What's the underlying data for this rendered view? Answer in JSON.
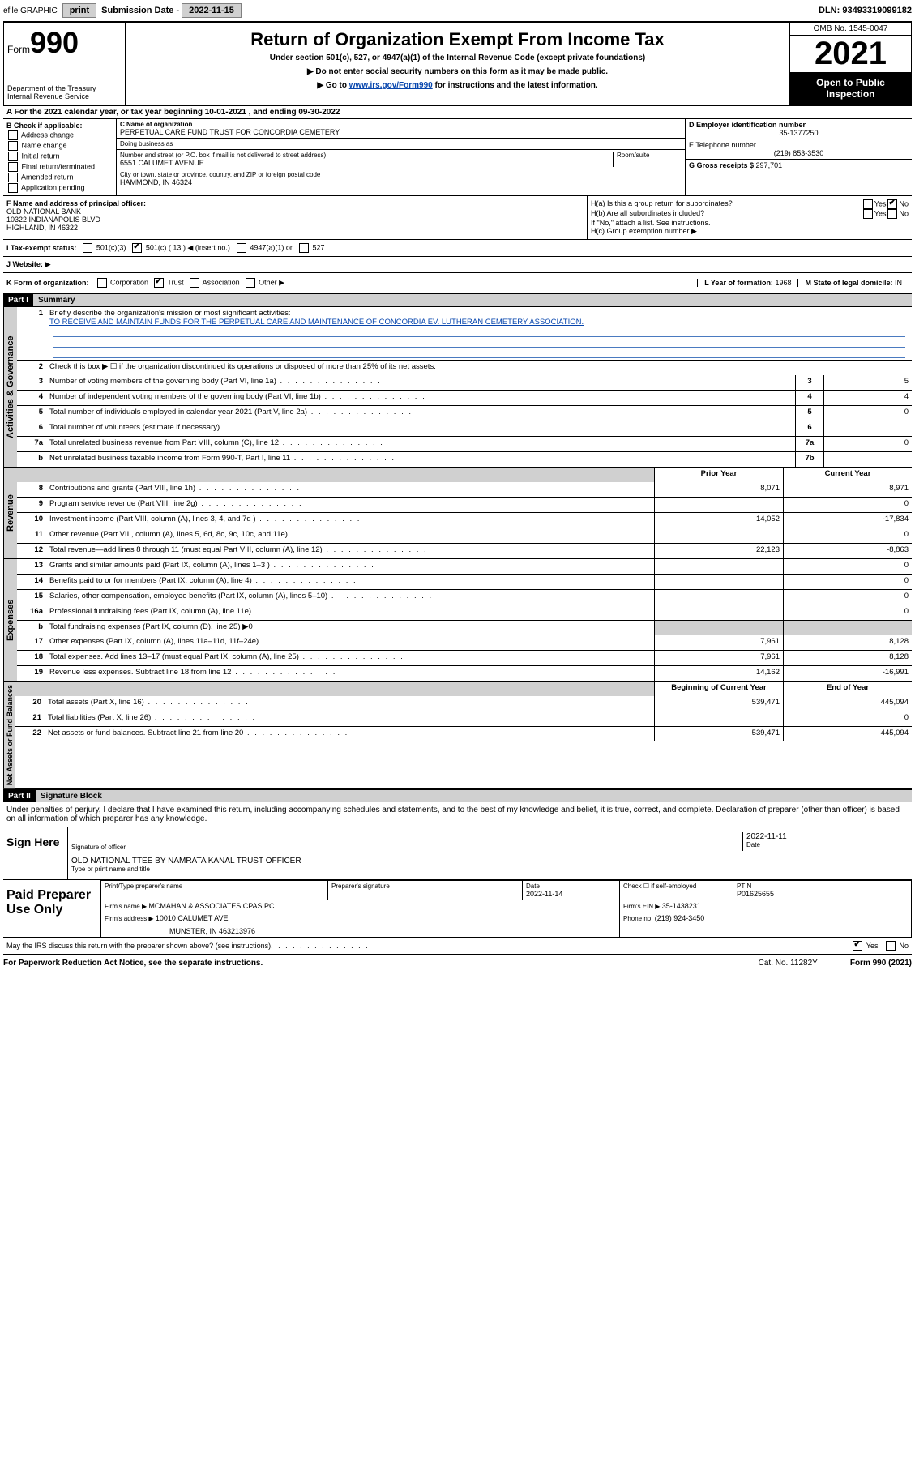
{
  "top_bar": {
    "efile_label": "efile GRAPHIC",
    "print_btn": "print",
    "sub_date_label": "Submission Date - ",
    "sub_date": "2022-11-15",
    "dln_label": "DLN: ",
    "dln": "93493319099182"
  },
  "header": {
    "form_word": "Form",
    "form_num": "990",
    "dept": "Department of the Treasury\nInternal Revenue Service",
    "title": "Return of Organization Exempt From Income Tax",
    "sub1": "Under section 501(c), 527, or 4947(a)(1) of the Internal Revenue Code (except private foundations)",
    "sub2": "▶ Do not enter social security numbers on this form as it may be made public.",
    "sub3_pre": "▶ Go to ",
    "sub3_link": "www.irs.gov/Form990",
    "sub3_post": " for instructions and the latest information.",
    "omb": "OMB No. 1545-0047",
    "year": "2021",
    "inspect": "Open to Public Inspection"
  },
  "line_a": {
    "prefix": "A For the 2021 calendar year, or tax year beginning ",
    "begin": "10-01-2021",
    "mid": " , and ending ",
    "end": "09-30-2022"
  },
  "box_b": {
    "label": "B Check if applicable:",
    "opts": [
      "Address change",
      "Name change",
      "Initial return",
      "Final return/terminated",
      "Amended return",
      "Application pending"
    ]
  },
  "box_c": {
    "name_label": "C Name of organization",
    "name": "PERPETUAL CARE FUND TRUST FOR CONCORDIA CEMETERY",
    "dba_label": "Doing business as",
    "addr_label": "Number and street (or P.O. box if mail is not delivered to street address)",
    "room_label": "Room/suite",
    "addr": "6551 CALUMET AVENUE",
    "city_label": "City or town, state or province, country, and ZIP or foreign postal code",
    "city": "HAMMOND, IN  46324"
  },
  "box_d": {
    "label": "D Employer identification number",
    "val": "35-1377250"
  },
  "box_e": {
    "label": "E Telephone number",
    "val": "(219) 853-3530"
  },
  "box_g": {
    "label": "G Gross receipts $ ",
    "val": "297,701"
  },
  "box_f": {
    "label": "F Name and address of principal officer:",
    "line1": "OLD NATIONAL BANK",
    "line2": "10322 INDIANAPOLIS BLVD",
    "line3": "HIGHLAND, IN  46322"
  },
  "box_h": {
    "ha": "H(a)  Is this a group return for subordinates?",
    "ha_no_checked": true,
    "hb": "H(b)  Are all subordinates included?",
    "hb_note": "If \"No,\" attach a list. See instructions.",
    "hc": "H(c)  Group exemption number ▶"
  },
  "row_i": {
    "label": "I  Tax-exempt status:",
    "opt1": "501(c)(3)",
    "opt2_pre": "501(c) ( ",
    "opt2_num": "13",
    "opt2_post": " ) ◀ (insert no.)",
    "opt2_checked": true,
    "opt3": "4947(a)(1) or",
    "opt4": "527"
  },
  "row_j": {
    "label": "J  Website: ▶"
  },
  "row_k": {
    "label": "K Form of organization:",
    "opts": [
      "Corporation",
      "Trust",
      "Association",
      "Other ▶"
    ],
    "checked_idx": 1,
    "year_label": "L Year of formation: ",
    "year_val": "1968",
    "state_label": "M State of legal domicile: ",
    "state_val": "IN"
  },
  "part1": {
    "header": "Part I",
    "title": "Summary",
    "vtab_gov": "Activities & Governance",
    "vtab_rev": "Revenue",
    "vtab_exp": "Expenses",
    "vtab_net": "Net Assets or Fund Balances",
    "line1_label": "Briefly describe the organization's mission or most significant activities:",
    "line1_text": "TO RECEIVE AND MAINTAIN FUNDS FOR THE PERPETUAL CARE AND MAINTENANCE OF CONCORDIA EV. LUTHERAN CEMETERY ASSOCIATION.",
    "line2": "Check this box ▶ ☐  if the organization discontinued its operations or disposed of more than 25% of its net assets.",
    "rows_gov": [
      {
        "n": "3",
        "d": "Number of voting members of the governing body (Part VI, line 1a)",
        "box": "3",
        "v": "5"
      },
      {
        "n": "4",
        "d": "Number of independent voting members of the governing body (Part VI, line 1b)",
        "box": "4",
        "v": "4"
      },
      {
        "n": "5",
        "d": "Total number of individuals employed in calendar year 2021 (Part V, line 2a)",
        "box": "5",
        "v": "0"
      },
      {
        "n": "6",
        "d": "Total number of volunteers (estimate if necessary)",
        "box": "6",
        "v": ""
      },
      {
        "n": "7a",
        "d": "Total unrelated business revenue from Part VIII, column (C), line 12",
        "box": "7a",
        "v": "0"
      },
      {
        "n": "b",
        "d": "Net unrelated business taxable income from Form 990-T, Part I, line 11",
        "box": "7b",
        "v": ""
      }
    ],
    "col_prior": "Prior Year",
    "col_curr": "Current Year",
    "rows_rev": [
      {
        "n": "8",
        "d": "Contributions and grants (Part VIII, line 1h)",
        "p": "8,071",
        "c": "8,971"
      },
      {
        "n": "9",
        "d": "Program service revenue (Part VIII, line 2g)",
        "p": "",
        "c": "0"
      },
      {
        "n": "10",
        "d": "Investment income (Part VIII, column (A), lines 3, 4, and 7d )",
        "p": "14,052",
        "c": "-17,834"
      },
      {
        "n": "11",
        "d": "Other revenue (Part VIII, column (A), lines 5, 6d, 8c, 9c, 10c, and 11e)",
        "p": "",
        "c": "0"
      },
      {
        "n": "12",
        "d": "Total revenue—add lines 8 through 11 (must equal Part VIII, column (A), line 12)",
        "p": "22,123",
        "c": "-8,863"
      }
    ],
    "rows_exp": [
      {
        "n": "13",
        "d": "Grants and similar amounts paid (Part IX, column (A), lines 1–3 )",
        "p": "",
        "c": "0"
      },
      {
        "n": "14",
        "d": "Benefits paid to or for members (Part IX, column (A), line 4)",
        "p": "",
        "c": "0"
      },
      {
        "n": "15",
        "d": "Salaries, other compensation, employee benefits (Part IX, column (A), lines 5–10)",
        "p": "",
        "c": "0"
      },
      {
        "n": "16a",
        "d": "Professional fundraising fees (Part IX, column (A), line 11e)",
        "p": "",
        "c": "0"
      }
    ],
    "row_16b_pre": "Total fundraising expenses (Part IX, column (D), line 25) ▶",
    "row_16b_val": "0",
    "rows_exp2": [
      {
        "n": "17",
        "d": "Other expenses (Part IX, column (A), lines 11a–11d, 11f–24e)",
        "p": "7,961",
        "c": "8,128"
      },
      {
        "n": "18",
        "d": "Total expenses. Add lines 13–17 (must equal Part IX, column (A), line 25)",
        "p": "7,961",
        "c": "8,128"
      },
      {
        "n": "19",
        "d": "Revenue less expenses. Subtract line 18 from line 12",
        "p": "14,162",
        "c": "-16,991"
      }
    ],
    "col_begin": "Beginning of Current Year",
    "col_end": "End of Year",
    "rows_net": [
      {
        "n": "20",
        "d": "Total assets (Part X, line 16)",
        "p": "539,471",
        "c": "445,094"
      },
      {
        "n": "21",
        "d": "Total liabilities (Part X, line 26)",
        "p": "",
        "c": "0"
      },
      {
        "n": "22",
        "d": "Net assets or fund balances. Subtract line 21 from line 20",
        "p": "539,471",
        "c": "445,094"
      }
    ]
  },
  "part2": {
    "header": "Part II",
    "title": "Signature Block",
    "intro": "Under penalties of perjury, I declare that I have examined this return, including accompanying schedules and statements, and to the best of my knowledge and belief, it is true, correct, and complete. Declaration of preparer (other than officer) is based on all information of which preparer has any knowledge.",
    "sign_here": "Sign Here",
    "sig_officer": "Signature of officer",
    "sig_date_label": "Date",
    "sig_date": "2022-11-11",
    "name_title": "OLD NATIONAL TTEE BY NAMRATA KANAL  TRUST OFFICER",
    "name_title_label": "Type or print name and title",
    "paid_label": "Paid Preparer Use Only",
    "prep_name_label": "Print/Type preparer's name",
    "prep_sig_label": "Preparer's signature",
    "prep_date_label": "Date",
    "prep_date": "2022-11-14",
    "prep_check_label": "Check ☐ if self-employed",
    "ptin_label": "PTIN",
    "ptin": "P01625655",
    "firm_name_label": "Firm's name    ▶ ",
    "firm_name": "MCMAHAN & ASSOCIATES CPAS PC",
    "firm_ein_label": "Firm's EIN ▶ ",
    "firm_ein": "35-1438231",
    "firm_addr_label": "Firm's address ▶ ",
    "firm_addr1": "10010 CALUMET AVE",
    "firm_addr2": "MUNSTER, IN  463213976",
    "firm_phone_label": "Phone no. ",
    "firm_phone": "(219) 924-3450",
    "discuss": "May the IRS discuss this return with the preparer shown above? (see instructions)",
    "discuss_yes_checked": true
  },
  "footer": {
    "paperwork": "For Paperwork Reduction Act Notice, see the separate instructions.",
    "cat": "Cat. No. 11282Y",
    "form": "Form 990 (2021)"
  }
}
